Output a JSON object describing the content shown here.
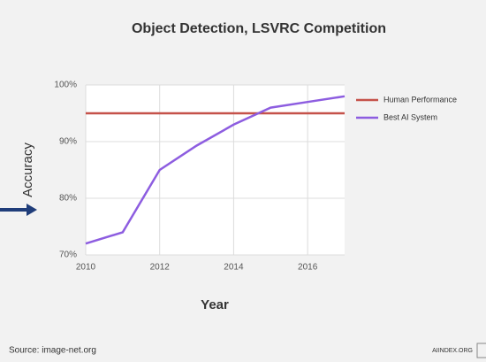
{
  "chart_data": {
    "type": "line",
    "title": "Object Detection, LSVRC Competition",
    "x_label": "Year",
    "y_label": "Accuracy",
    "x": [
      2010,
      2011,
      2012,
      2013,
      2014,
      2015,
      2016,
      2017
    ],
    "series": [
      {
        "name": "Human Performance",
        "color": "#c5524a",
        "values": [
          95,
          95,
          95,
          95,
          95,
          95,
          95,
          95
        ]
      },
      {
        "name": "Best AI System",
        "color": "#8d5de0",
        "values": [
          72,
          74,
          85,
          89.3,
          93,
          96,
          97,
          98
        ]
      }
    ],
    "xlim": [
      2010,
      2017
    ],
    "xticks": [
      2010,
      2012,
      2014,
      2016
    ],
    "ylim": [
      70,
      100
    ],
    "yticks": [
      {
        "value": 70,
        "label": "70%"
      },
      {
        "value": 80,
        "label": "80%"
      },
      {
        "value": 90,
        "label": "90%"
      },
      {
        "value": 100,
        "label": "100%"
      }
    ],
    "grid": true,
    "legend": "right",
    "source": "Source: image-net.org",
    "credit": "AIINDEX.ORG"
  }
}
